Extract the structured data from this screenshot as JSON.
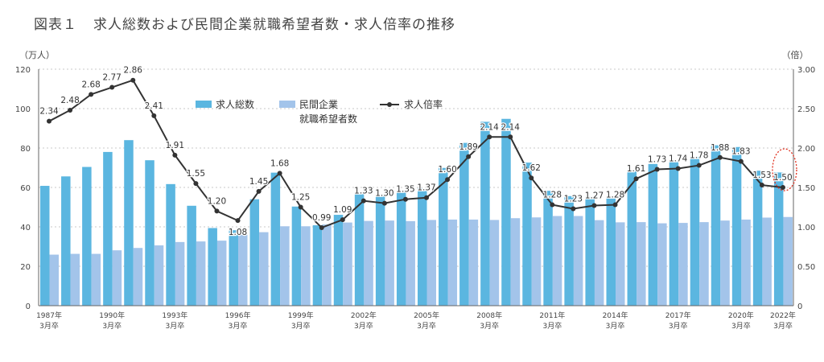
{
  "title": {
    "number": "図表１",
    "text": "求人総数および民間企業就職希望者数・求人倍率の推移"
  },
  "chart_data": {
    "type": "bar",
    "categories": [
      "1987",
      "1988",
      "1989",
      "1990",
      "1991",
      "1992",
      "1993",
      "1994",
      "1995",
      "1996",
      "1997",
      "1998",
      "1999",
      "2000",
      "2001",
      "2002",
      "2003",
      "2004",
      "2005",
      "2006",
      "2007",
      "2008",
      "2009",
      "2010",
      "2011",
      "2012",
      "2013",
      "2014",
      "2015",
      "2016",
      "2017",
      "2018",
      "2019",
      "2020",
      "2021",
      "2022"
    ],
    "x_tick_labels": [
      {
        "index": 0,
        "year": "1987年",
        "sub": "3月卒"
      },
      {
        "index": 3,
        "year": "1990年",
        "sub": "3月卒"
      },
      {
        "index": 6,
        "year": "1993年",
        "sub": "3月卒"
      },
      {
        "index": 9,
        "year": "1996年",
        "sub": "3月卒"
      },
      {
        "index": 12,
        "year": "1999年",
        "sub": "3月卒"
      },
      {
        "index": 15,
        "year": "2002年",
        "sub": "3月卒"
      },
      {
        "index": 18,
        "year": "2005年",
        "sub": "3月卒"
      },
      {
        "index": 21,
        "year": "2008年",
        "sub": "3月卒"
      },
      {
        "index": 24,
        "year": "2011年",
        "sub": "3月卒"
      },
      {
        "index": 27,
        "year": "2014年",
        "sub": "3月卒"
      },
      {
        "index": 30,
        "year": "2017年",
        "sub": "3月卒"
      },
      {
        "index": 33,
        "year": "2020年",
        "sub": "3月卒"
      },
      {
        "index": 35,
        "year": "2022年",
        "sub": "3月卒"
      }
    ],
    "series": [
      {
        "name": "求人総数",
        "type": "bar",
        "axis": "left",
        "color": "#5bb6e0",
        "values": [
          60.8,
          65.6,
          70.4,
          78.0,
          84.0,
          73.8,
          61.7,
          50.7,
          39.4,
          38.3,
          54.0,
          67.5,
          50.3,
          40.8,
          46.1,
          57.3,
          56.0,
          58.0,
          59.6,
          69.9,
          82.6,
          93.3,
          94.8,
          72.6,
          58.3,
          55.6,
          55.4,
          54.4,
          68.2,
          71.9,
          73.4,
          75.5,
          81.4,
          80.5,
          68.5,
          67.6
        ]
      },
      {
        "name": "民間企業就職希望者数",
        "type": "bar",
        "axis": "left",
        "color": "#a3c4ea",
        "values": [
          25.9,
          26.3,
          26.3,
          28.1,
          29.3,
          30.6,
          32.3,
          32.6,
          33.0,
          36.0,
          37.3,
          40.3,
          40.3,
          41.2,
          42.2,
          43.0,
          43.2,
          42.9,
          43.5,
          43.7,
          43.7,
          43.5,
          44.4,
          44.8,
          45.5,
          45.5,
          43.4,
          42.3,
          42.4,
          41.8,
          42.0,
          42.4,
          43.2,
          43.7,
          44.7,
          45.0
        ]
      },
      {
        "name": "求人倍率",
        "type": "line",
        "axis": "right",
        "color": "#333333",
        "values": [
          2.34,
          2.48,
          2.68,
          2.77,
          2.86,
          2.41,
          1.91,
          1.55,
          1.2,
          1.08,
          1.45,
          1.68,
          1.25,
          0.99,
          1.09,
          1.33,
          1.3,
          1.35,
          1.37,
          1.6,
          1.89,
          2.14,
          2.14,
          1.62,
          1.28,
          1.23,
          1.27,
          1.28,
          1.61,
          1.73,
          1.74,
          1.78,
          1.88,
          1.83,
          1.53,
          1.5
        ],
        "labels": [
          "2.34",
          "2.48",
          "2.68",
          "2.77",
          "2.86",
          "2.41",
          "1.91",
          "1.55",
          "1.20",
          "1.08",
          "1.45",
          "1.68",
          "1.25",
          "0.99",
          "1.09",
          "1.33",
          "1.30",
          "1.35",
          "1.37",
          "1.60",
          "1.89",
          "2.14",
          "2.14",
          "1.62",
          "1.28",
          "1.23",
          "1.27",
          "1.28",
          "1.61",
          "1.73",
          "1.74",
          "1.78",
          "1.88",
          "1.83",
          "1.53",
          "1.50"
        ]
      }
    ],
    "y_left": {
      "unit_label": "（万人）",
      "min": 0,
      "max": 120,
      "ticks": [
        "0",
        "20",
        "40",
        "60",
        "80",
        "100",
        "120"
      ]
    },
    "y_right": {
      "unit_label": "（倍）",
      "min": 0,
      "max": 3,
      "ticks": [
        "0",
        "0.50",
        "1.00",
        "1.50",
        "2.00",
        "2.50",
        "3.00"
      ]
    },
    "legend": [
      {
        "name": "求人総数",
        "kind": "bar",
        "color": "#5bb6e0"
      },
      {
        "name": "民間企業",
        "name2": "就職希望者数",
        "kind": "bar",
        "color": "#a3c4ea"
      },
      {
        "name": "求人倍率",
        "kind": "line",
        "color": "#333333"
      }
    ],
    "legend_placement": "top-center",
    "grid": "horizontal-dotted",
    "highlight": {
      "index": 35,
      "style": "red-dashed-ellipse",
      "color": "#e0301e"
    }
  }
}
